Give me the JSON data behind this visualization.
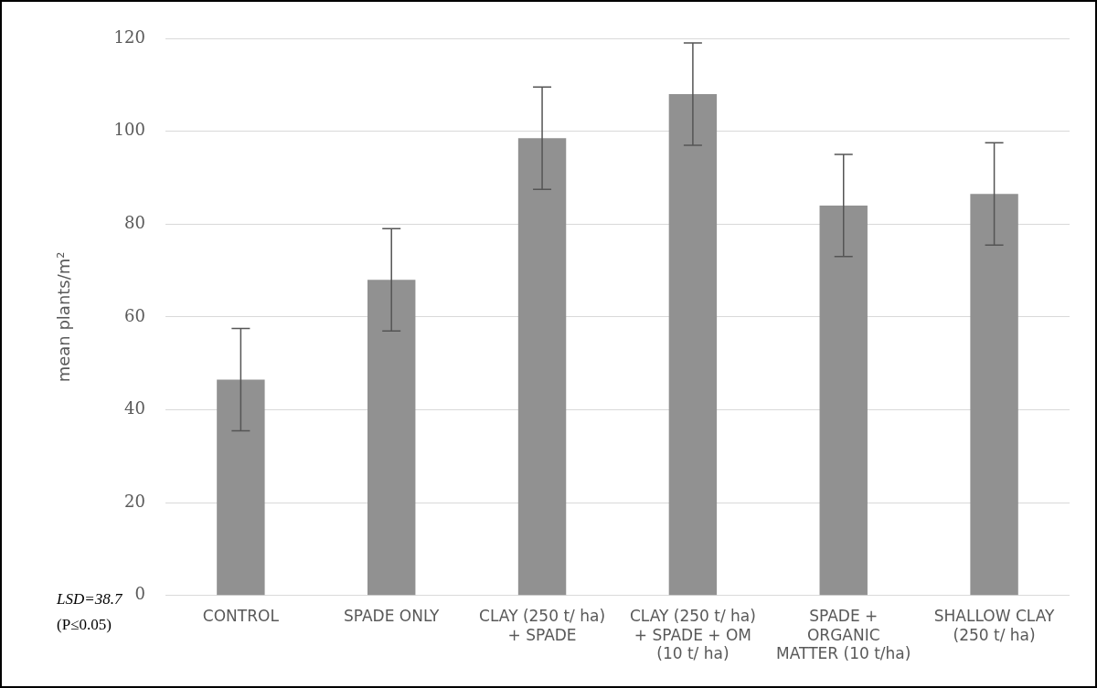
{
  "chart_data": {
    "type": "bar",
    "ylabel": "mean plants/m²",
    "categories": [
      "CONTROL",
      "SPADE ONLY",
      "CLAY (250 t/ ha) + SPADE",
      "CLAY (250 t/ ha) + SPADE + OM (10 t/ ha)",
      "SPADE + ORGANIC MATTER (10 t/ha)",
      "SHALLOW CLAY (250 t/ ha)"
    ],
    "values": [
      46.5,
      68,
      98.5,
      108,
      84,
      86.5
    ],
    "errors": [
      11,
      11,
      11,
      11,
      11,
      11
    ],
    "color": "#919191",
    "ylim": [
      0,
      120
    ],
    "yticks": [
      0,
      20,
      40,
      60,
      80,
      100,
      120
    ],
    "grid": "y",
    "legend": false,
    "annotations": [
      "LSD=38.7",
      "(P≤0.05)"
    ]
  }
}
